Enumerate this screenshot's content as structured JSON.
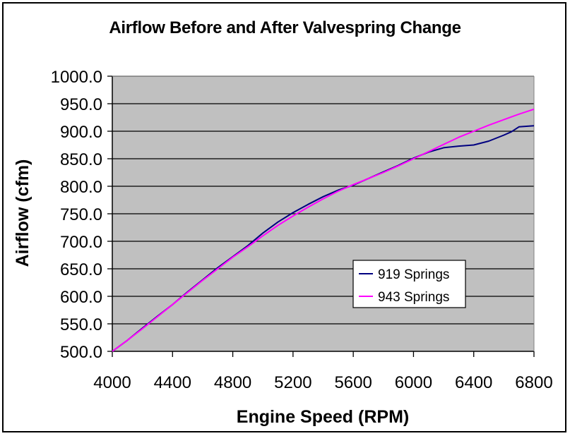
{
  "chart_data": {
    "type": "line",
    "title": "Airflow Before and After Valvespring Change",
    "xlabel": "Engine Speed (RPM)",
    "ylabel": "Airflow (cfm)",
    "xlim": [
      4000,
      6800
    ],
    "ylim": [
      500,
      1000
    ],
    "x_ticks": [
      "4000",
      "4400",
      "4800",
      "5200",
      "5600",
      "6000",
      "6400",
      "6800"
    ],
    "x_tick_values": [
      4000,
      4400,
      4800,
      5200,
      5600,
      6000,
      6400,
      6800
    ],
    "y_ticks": [
      "500.0",
      "550.0",
      "600.0",
      "650.0",
      "700.0",
      "750.0",
      "800.0",
      "850.0",
      "900.0",
      "950.0",
      "1000.0"
    ],
    "y_tick_values": [
      500,
      550,
      600,
      650,
      700,
      750,
      800,
      850,
      900,
      950,
      1000
    ],
    "grid": true,
    "plot_background": "#C0C0C0",
    "legend_position": "center-right",
    "x": [
      4000,
      4100,
      4200,
      4300,
      4400,
      4500,
      4600,
      4700,
      4800,
      4900,
      5000,
      5100,
      5200,
      5300,
      5400,
      5500,
      5600,
      5700,
      5800,
      5900,
      6000,
      6100,
      6200,
      6300,
      6400,
      6500,
      6600,
      6650,
      6700,
      6800
    ],
    "series": [
      {
        "name": "919 Springs",
        "color": "#000080",
        "values": [
          500,
          520,
          542,
          564,
          585,
          608,
          630,
          652,
          672,
          692,
          715,
          735,
          752,
          767,
          781,
          793,
          802,
          814,
          826,
          838,
          851,
          862,
          870,
          873,
          875,
          882,
          893,
          899,
          908,
          910
        ]
      },
      {
        "name": "943 Springs",
        "color": "#FF00FF",
        "values": [
          500,
          520,
          541,
          563,
          585,
          607,
          629,
          650,
          671,
          690,
          710,
          729,
          746,
          762,
          777,
          791,
          803,
          814,
          825,
          837,
          850,
          863,
          876,
          889,
          900,
          911,
          921,
          926,
          931,
          940
        ]
      }
    ]
  }
}
